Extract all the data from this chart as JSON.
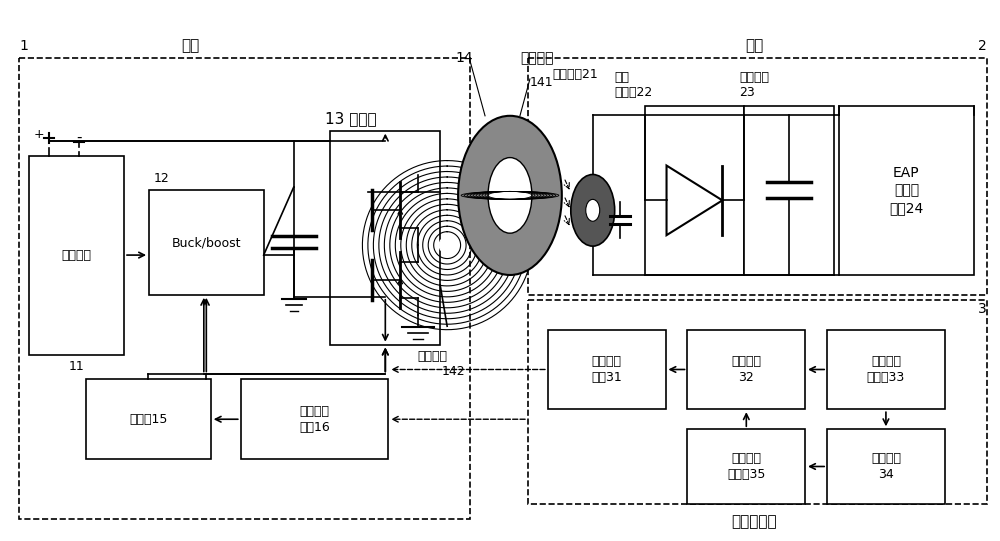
{
  "background": "#ffffff",
  "fig_w": 10.0,
  "fig_h": 5.41,
  "label1": "1",
  "label2": "2",
  "label3": "3",
  "label11": "11",
  "label12": "12",
  "label13": "13 逆变器",
  "label14": "14",
  "label141": "141",
  "label142": "142",
  "label_zhongjixq": "中继线圈",
  "label_fashe": "发射线圈",
  "label_tiwai": "体外",
  "label_tinei": "体内",
  "label_wanbujing": "腕部或颈部",
  "box_waidianchi": "外置电池",
  "box_buckboost": "Buck/boost",
  "box_eap": "EAP\n电活性\n薄膜24",
  "box_jieshuxq": "接收线圈21",
  "box_gaoyazhengliuqiao": "高压\n整流桥22",
  "box_weichidianrong": "维持电容\n23",
  "box_zhukongqi": "主控器15",
  "box_lanyejieshou": "蓝牙接收\n模块16",
  "box_lanyefashe": "蓝牙发射\n模块31",
  "box_kongzhidianlu": "控制电路\n32",
  "box_xinhaoqiqu": "信号拾取\n传感器33",
  "box_dongtaiyingbian": "动态应变\n传感器35",
  "box_yadianbomo": "压电薄膜\n34"
}
